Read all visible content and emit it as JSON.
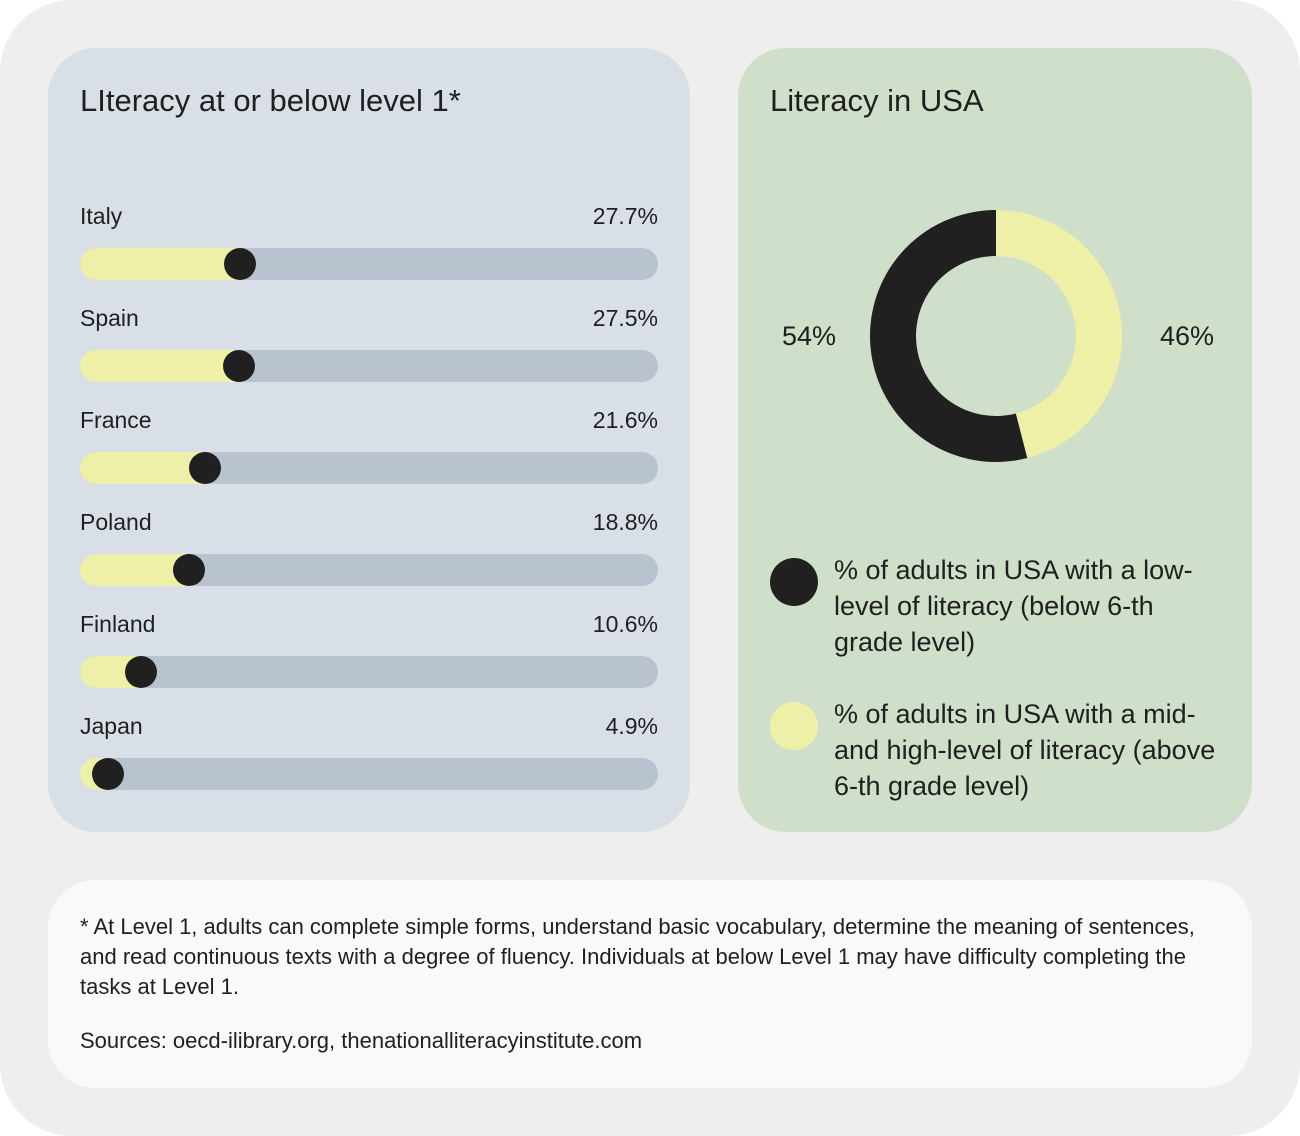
{
  "colors": {
    "frame_bg": "#eeeeee",
    "left_panel_bg": "#d8dfe6",
    "right_panel_bg": "#d0dfca",
    "bottom_panel_bg": "#f9f9f9",
    "bar_track": "#b9c3cf",
    "bar_fill": "#eff0a8",
    "dark": "#202020",
    "light": "#eff0a8"
  },
  "left_panel": {
    "title": "LIteracy at or below level 1*"
  },
  "right_panel": {
    "title": "Literacy in USA"
  },
  "chart_data": [
    {
      "type": "bar",
      "orientation": "horizontal",
      "title": "LIteracy at or below level 1*",
      "categories": [
        "Italy",
        "Spain",
        "France",
        "Poland",
        "Finland",
        "Japan"
      ],
      "values": [
        27.7,
        27.5,
        21.6,
        18.8,
        10.6,
        4.9
      ],
      "value_labels": [
        "27.7%",
        "27.5%",
        "21.6%",
        "18.8%",
        "10.6%",
        "4.9%"
      ],
      "unit": "%",
      "xlim": [
        0,
        100
      ]
    },
    {
      "type": "pie",
      "style": "donut",
      "title": "Literacy in USA",
      "slices": [
        {
          "label": "% of adults in USA with a low-level of literacy (below 6-th grade level)",
          "value": 54,
          "value_label": "54%",
          "color": "#202020"
        },
        {
          "label": "% of adults in USA with a mid- and high-level of literacy (above 6-th grade level)",
          "value": 46,
          "value_label": "46%",
          "color": "#eff0a8"
        }
      ],
      "legend": "bottom"
    }
  ],
  "legend": {
    "low": "% of adults in USA with a low-level of literacy (below 6-th grade level)",
    "high": "% of adults in USA with a mid- and high-level of literacy (above 6-th grade level)"
  },
  "footer": {
    "note": "* At Level 1, adults can complete simple forms, understand basic vocabulary, determine the meaning of sentences, and read continuous texts with a degree of fluency. Individuals at below Level 1 may have difficulty completing the tasks at Level 1.",
    "sources": "Sources: oecd-ilibrary.org, thenationalliteracyinstitute.com"
  }
}
